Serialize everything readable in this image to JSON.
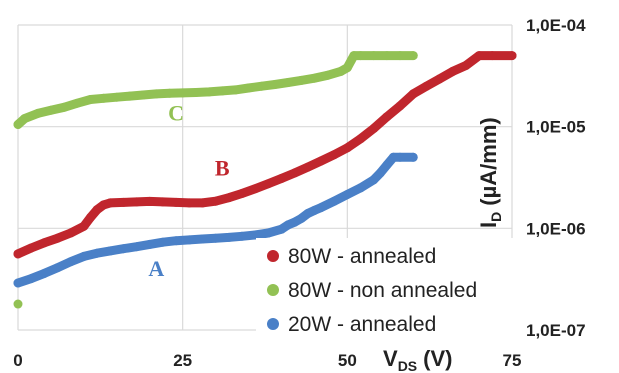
{
  "chart_data": {
    "type": "scatter",
    "title": "",
    "xlabel": "V",
    "xlabel_sub": "DS",
    "xlabel_unit": "(V)",
    "ylabel": "I",
    "ylabel_sub": "D",
    "ylabel_unit": "(µA/mm)",
    "xlim": [
      0,
      75
    ],
    "ylim_log10": [
      -7,
      -4
    ],
    "y_scale": "log",
    "x_ticks": [
      "0",
      "25",
      "50",
      "75"
    ],
    "x_tick_values": [
      0,
      25,
      50,
      75
    ],
    "y_ticks": [
      "1,0E-04",
      "1,0E-05",
      "1,0E-06",
      "1,0E-07"
    ],
    "y_tick_values": [
      0.0001,
      1e-05,
      1e-06,
      1e-07
    ],
    "grid": true,
    "legend_position": "bottom-right",
    "series": [
      {
        "name": "80W - annealed",
        "label": "B",
        "color": "#c0262d",
        "x": [
          0,
          2,
          4,
          6,
          8,
          10,
          11,
          12,
          13,
          14,
          16,
          18,
          20,
          22,
          24,
          26,
          28,
          30,
          32,
          34,
          36,
          38,
          40,
          42,
          44,
          46,
          48,
          50,
          52,
          54,
          56,
          58,
          60,
          62,
          64,
          66,
          68,
          70,
          72,
          75
        ],
        "y": [
          5.6e-07,
          6.4e-07,
          7.2e-07,
          8e-07,
          9e-07,
          1.05e-06,
          1.28e-06,
          1.52e-06,
          1.7e-06,
          1.78e-06,
          1.8e-06,
          1.82e-06,
          1.84e-06,
          1.82e-06,
          1.8e-06,
          1.78e-06,
          1.78e-06,
          1.85e-06,
          2e-06,
          2.2e-06,
          2.45e-06,
          2.75e-06,
          3.1e-06,
          3.5e-06,
          4e-06,
          4.6e-06,
          5.3e-06,
          6.2e-06,
          7.6e-06,
          9.6e-06,
          1.25e-05,
          1.6e-05,
          2.1e-05,
          2.5e-05,
          2.95e-05,
          3.5e-05,
          4e-05,
          5e-05,
          5e-05,
          5e-05
        ]
      },
      {
        "name": "80W - non annealed",
        "label": "C",
        "color": "#92c154",
        "x": [
          0,
          1,
          3,
          5,
          7,
          9,
          11,
          13,
          15,
          17,
          19,
          21,
          23,
          25,
          27,
          29,
          31,
          33,
          35,
          37,
          39,
          41,
          43,
          45,
          47,
          49,
          50,
          50.6,
          51,
          52,
          54,
          56,
          58,
          60
        ],
        "y": [
          1.05e-05,
          1.2e-05,
          1.35e-05,
          1.45e-05,
          1.55e-05,
          1.7e-05,
          1.85e-05,
          1.9e-05,
          1.95e-05,
          2e-05,
          2.05e-05,
          2.1e-05,
          2.13e-05,
          2.15e-05,
          2.17e-05,
          2.2e-05,
          2.25e-05,
          2.3e-05,
          2.4e-05,
          2.5e-05,
          2.6e-05,
          2.72e-05,
          2.85e-05,
          3e-05,
          3.2e-05,
          3.5e-05,
          3.8e-05,
          4.5e-05,
          5e-05,
          5e-05,
          5e-05,
          5e-05,
          5e-05,
          5e-05
        ]
      },
      {
        "name": "20W - annealed",
        "label": "A",
        "color": "#4a80c7",
        "x": [
          0,
          2,
          4,
          6,
          8,
          10,
          12,
          14,
          16,
          18,
          20,
          22,
          24,
          26,
          28,
          30,
          32,
          34,
          36,
          38,
          40,
          41,
          42,
          43,
          44,
          45,
          46,
          48,
          50,
          52,
          54,
          55,
          56,
          57,
          58,
          60
        ],
        "y": [
          2.9e-07,
          3.2e-07,
          3.6e-07,
          4.1e-07,
          4.7e-07,
          5.3e-07,
          5.7e-07,
          6e-07,
          6.3e-07,
          6.6e-07,
          6.95e-07,
          7.3e-07,
          7.55e-07,
          7.7e-07,
          7.85e-07,
          8e-07,
          8.15e-07,
          8.35e-07,
          8.6e-07,
          9e-07,
          9.8e-07,
          1.08e-06,
          1.15e-06,
          1.25e-06,
          1.4e-06,
          1.5e-06,
          1.6e-06,
          1.85e-06,
          2.15e-06,
          2.5e-06,
          3e-06,
          3.5e-06,
          4.2e-06,
          5e-06,
          5e-06,
          5e-06
        ]
      }
    ],
    "extra_points": [
      {
        "series": "80W - non annealed",
        "x": 0,
        "y": 1.8e-07
      }
    ],
    "annotations": [
      {
        "text": "C",
        "series": "80W - non annealed",
        "x": 24,
        "y": 1.15e-05
      },
      {
        "text": "B",
        "series": "80W - annealed",
        "x": 31,
        "y": 3.3e-06
      },
      {
        "text": "A",
        "series": "20W - annealed",
        "x": 21,
        "y": 3.4e-07
      }
    ]
  }
}
